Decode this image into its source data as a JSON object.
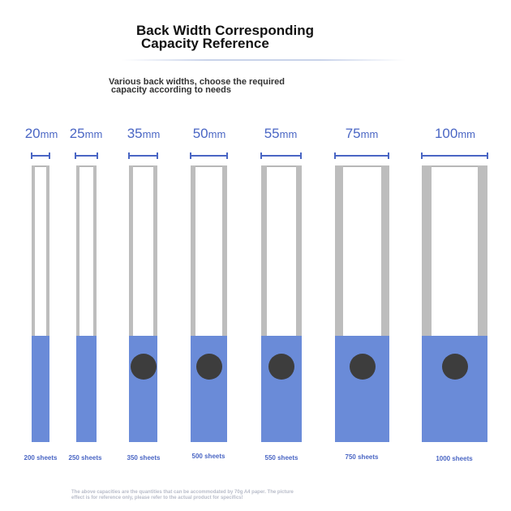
{
  "header": {
    "title_line1": "Back Width Corresponding",
    "title_line2": "Capacity Reference",
    "subtitle_line1": "Various back widths, choose the required",
    "subtitle_line2": "capacity according to needs"
  },
  "widths": [
    {
      "value": "20",
      "unit": "mm",
      "capacity": "200 sheets",
      "has_ring_hole": false
    },
    {
      "value": "25",
      "unit": "mm",
      "capacity": "250 sheets",
      "has_ring_hole": false
    },
    {
      "value": "35",
      "unit": "mm",
      "capacity": "350 sheets",
      "has_ring_hole": true
    },
    {
      "value": "50",
      "unit": "mm",
      "capacity": "500 sheets",
      "has_ring_hole": true
    },
    {
      "value": "55",
      "unit": "mm",
      "capacity": "550 sheets",
      "has_ring_hole": true
    },
    {
      "value": "75",
      "unit": "mm",
      "capacity": "750 sheets",
      "has_ring_hole": true
    },
    {
      "value": "100",
      "unit": "mm",
      "capacity": "1000 sheets",
      "has_ring_hole": true
    }
  ],
  "footnote": {
    "line1": "The above capacities are the quantities that can be accommodated by 70g A4 paper. The picture",
    "line2": "effect is for reference only, please refer to the actual product for specifics!"
  },
  "colors": {
    "accent": "#4a66c4",
    "spine_blue": "#6a8bd8",
    "rail_gray": "#bdbdbd",
    "ring_hole": "#3d3d3d"
  }
}
